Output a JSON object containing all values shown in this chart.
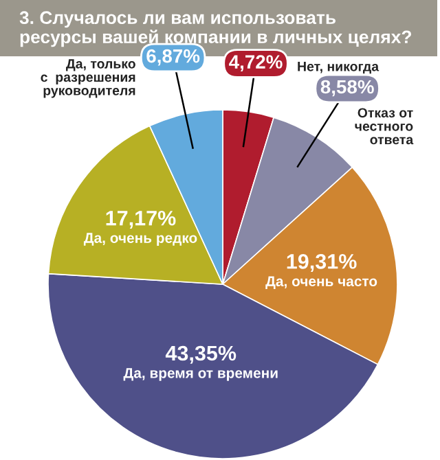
{
  "chart_data": {
    "type": "pie",
    "title": "3. Случалось ли вам использовать\nресурсы вашей компании в личных целях?",
    "categories": [
      "Нет, никогда",
      "Отказ от\nчестного\nответа",
      "Да, очень часто",
      "Да, время от времени",
      "Да, очень редко",
      "Да, только\nс  разрешения\nруководителя"
    ],
    "values": [
      4.72,
      8.58,
      19.31,
      43.35,
      17.17,
      6.87
    ],
    "value_labels": [
      "4,72%",
      "8,58%",
      "19,31%",
      "43,35%",
      "17,17%",
      "6,87%"
    ],
    "colors": [
      "#b01c2e",
      "#8888a6",
      "#cf8531",
      "#4f5089",
      "#b7b024",
      "#62aadd"
    ]
  }
}
